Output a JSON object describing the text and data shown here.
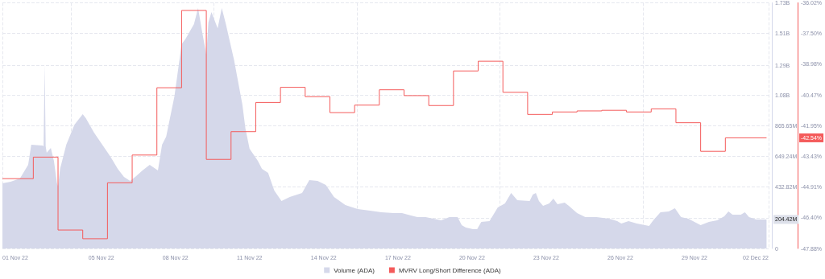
{
  "chart_data": {
    "type": "area",
    "xlim": [
      "--11-01",
      "--12-02"
    ],
    "xticks": [
      {
        "value": "--11-01",
        "label": "01 Nov 22"
      },
      {
        "value": "--11-05",
        "label": "05 Nov 22"
      },
      {
        "value": "--11-08",
        "label": "08 Nov 22"
      },
      {
        "value": "--11-11",
        "label": "11 Nov 22"
      },
      {
        "value": "--11-14",
        "label": "14 Nov 22"
      },
      {
        "value": "--11-17",
        "label": "17 Nov 22"
      },
      {
        "value": "--11-20",
        "label": "20 Nov 22"
      },
      {
        "value": "--11-23",
        "label": "23 Nov 22"
      },
      {
        "value": "--11-26",
        "label": "26 Nov 22"
      },
      {
        "value": "--11-29",
        "label": "29 Nov 22"
      },
      {
        "value": "--12-02",
        "label": "02 Dec 22"
      }
    ],
    "ylim": [
      0,
      1731280000
    ],
    "yticks": [
      0,
      {
        "value": 216410000,
        "label": null
      },
      {
        "value": 432820000,
        "label": "432.82M"
      },
      {
        "value": 649240000,
        "label": "649.24M"
      },
      {
        "value": 865650000,
        "label": "865.65M"
      },
      {
        "value": 1082050000,
        "label": "1.08B"
      },
      {
        "value": 1290000000,
        "label": "1.29B"
      },
      {
        "value": 1514870000,
        "label": "1.51B"
      },
      {
        "value": 1731280000,
        "label": "1.73B"
      }
    ],
    "y2lim": [
      -47.88,
      -36.02
    ],
    "y2ticks": [
      {
        "value": -47.88,
        "label": "-47.88%"
      },
      {
        "value": -46.4,
        "label": "-46.40%"
      },
      {
        "value": -44.91,
        "label": "-44.91%"
      },
      {
        "value": -43.43,
        "label": "-43.43%"
      },
      {
        "value": -41.95,
        "label": "-41.95%"
      },
      {
        "value": -40.47,
        "label": "-40.47%"
      },
      {
        "value": -38.98,
        "label": "-38.98%"
      },
      {
        "value": -37.5,
        "label": "-37.50%"
      },
      {
        "value": -36.02,
        "label": "-36.02%"
      }
    ],
    "grid": true,
    "legend": "bottom",
    "annotations": [
      "204.42M",
      "-42.54%"
    ],
    "series": [
      {
        "name": "Volume (ADA)",
        "color": "#d5d8ea",
        "x": [
          "--11-01T00:00",
          "--11-01T08:00",
          "--11-01T17:00",
          "--11-02T01:00",
          "--11-02T04:00",
          "--11-02T15:00",
          "--11-02T16:00",
          "--11-02T17:00",
          "--11-02T18:00",
          "--11-02T19:00",
          "--11-02T23:00",
          "--11-03T02:00",
          "--11-03T05:00",
          "--11-03T06:00",
          "--11-03T08:00",
          "--11-03T14:00",
          "--11-03T22:00",
          "--11-04T06:00",
          "--11-04T09:00",
          "--11-04T17:00",
          "--11-05T01:00",
          "--11-05T09:00",
          "--11-05T16:00",
          "--11-05T22:00",
          "--11-06T04:00",
          "--11-06T09:00",
          "--11-06T16:00",
          "--11-06T23:00",
          "--11-07T07:00",
          "--11-07T11:00",
          "--11-07T15:00",
          "--11-07T23:00",
          "--11-08T06:00",
          "--11-08T10:00",
          "--11-08T18:00",
          "--11-08T22:00",
          "--11-09T02:00",
          "--11-09T06:00",
          "--11-09T08:00",
          "--11-09T11:00",
          "--11-09T17:00",
          "--11-09T21:00",
          "--11-10T01:00",
          "--11-10T09:00",
          "--11-10T17:00",
          "--11-10T20:00",
          "--11-11T00:00",
          "--11-11T08:00",
          "--11-11T12:00",
          "--11-11T18:00",
          "--11-12T00:00",
          "--11-12T07:00",
          "--11-12T15:00",
          "--11-13T03:00",
          "--11-13T10:00",
          "--11-13T18:00",
          "--11-14T02:00",
          "--11-14T10:00",
          "--11-14T21:00",
          "--11-15T09:00",
          "--11-15T21:00",
          "--11-16T08:00",
          "--11-16T20:00",
          "--11-17T04:00",
          "--11-17T19:00",
          "--11-18T03:00",
          "--11-18T18:00",
          "--11-19T02:00",
          "--11-19T10:00",
          "--11-19T14:00",
          "--11-19T18:00",
          "--11-20T01:00",
          "--11-20T05:00",
          "--11-20T09:00",
          "--11-20T17:00",
          "--11-21T01:00",
          "--11-21T08:00",
          "--11-21T14:00",
          "--11-21T20:00",
          "--11-22T08:00",
          "--11-22T11:00",
          "--11-22T14:00",
          "--11-22T17:00",
          "--11-22T21:00",
          "--11-23T03:00",
          "--11-23T07:00",
          "--11-23T11:00",
          "--11-23T18:00",
          "--11-23T22:00",
          "--11-24T06:00",
          "--11-24T14:00",
          "--11-25T01:00",
          "--11-25T13:00",
          "--11-25T21:00",
          "--11-26T01:00",
          "--11-26T08:00",
          "--11-26T16:00",
          "--11-27T04:00",
          "--11-27T08:00",
          "--11-27T15:00",
          "--11-27T23:00",
          "--11-28T05:00",
          "--11-28T11:00",
          "--11-28T18:00",
          "--11-29T06:00",
          "--11-29T14:00",
          "--11-29T22:00",
          "--11-30T05:00",
          "--11-30T09:00",
          "--11-30T13:00",
          "--11-30T21:00",
          "--12-01T01:00",
          "--12-01T05:00",
          "--12-01T12:00",
          "--12-01T22:00"
        ],
        "values": [
          459000000,
          470000000,
          493000000,
          589000000,
          731000000,
          725000000,
          720000000,
          1298000000,
          720000000,
          674000000,
          708000000,
          618000000,
          459000000,
          436000000,
          561000000,
          731000000,
          873000000,
          946000000,
          918000000,
          816000000,
          731000000,
          646000000,
          561000000,
          504000000,
          476000000,
          504000000,
          550000000,
          589000000,
          550000000,
          731000000,
          788000000,
          1071000000,
          1439000000,
          1479000000,
          1581000000,
          1694000000,
          1524000000,
          1366000000,
          1592000000,
          1666000000,
          1552000000,
          1694000000,
          1581000000,
          1326000000,
          1014000000,
          844000000,
          703000000,
          618000000,
          561000000,
          533000000,
          408000000,
          334000000,
          363000000,
          391000000,
          482000000,
          476000000,
          448000000,
          363000000,
          306000000,
          278000000,
          266000000,
          255000000,
          249000000,
          249000000,
          221000000,
          221000000,
          198000000,
          221000000,
          221000000,
          164000000,
          147000000,
          136000000,
          136000000,
          187000000,
          193000000,
          289000000,
          317000000,
          391000000,
          340000000,
          334000000,
          380000000,
          391000000,
          334000000,
          300000000,
          317000000,
          351000000,
          312000000,
          323000000,
          300000000,
          249000000,
          221000000,
          221000000,
          210000000,
          193000000,
          176000000,
          193000000,
          176000000,
          159000000,
          198000000,
          255000000,
          261000000,
          283000000,
          221000000,
          210000000,
          164000000,
          187000000,
          198000000,
          227000000,
          261000000,
          238000000,
          238000000,
          255000000,
          221000000,
          204000000,
          204420000
        ]
      },
      {
        "name": "MVRV Long/Short Difference (ADA)",
        "type": "step",
        "axis": "y2",
        "color": "#f45b5b",
        "x": [
          "--11-01T00:00",
          "--11-02T06:00",
          "--11-03T06:00",
          "--11-04T06:00",
          "--11-05T06:00",
          "--11-06T06:00",
          "--11-07T06:00",
          "--11-08T06:00",
          "--11-09T06:00",
          "--11-10T06:00",
          "--11-11T06:00",
          "--11-12T06:00",
          "--11-13T06:00",
          "--11-14T06:00",
          "--11-15T06:00",
          "--11-16T06:00",
          "--11-17T06:00",
          "--11-18T06:00",
          "--11-19T06:00",
          "--11-20T06:00",
          "--11-21T06:00",
          "--11-22T06:00",
          "--11-23T06:00",
          "--11-24T06:00",
          "--11-25T06:00",
          "--11-26T06:00",
          "--11-27T06:00",
          "--11-28T06:00",
          "--11-29T06:00",
          "--11-30T06:00",
          "--12-01T22:00"
        ],
        "values": [
          -44.51,
          -43.47,
          -46.99,
          -47.41,
          -44.71,
          -43.37,
          -40.12,
          -36.39,
          -43.58,
          -42.24,
          -40.83,
          -40.1,
          -40.55,
          -41.32,
          -40.96,
          -40.22,
          -40.5,
          -40.98,
          -39.31,
          -38.84,
          -40.34,
          -41.41,
          -41.29,
          -41.24,
          -41.21,
          -41.29,
          -41.14,
          -41.81,
          -43.19,
          -42.54,
          -42.54
        ]
      }
    ]
  }
}
